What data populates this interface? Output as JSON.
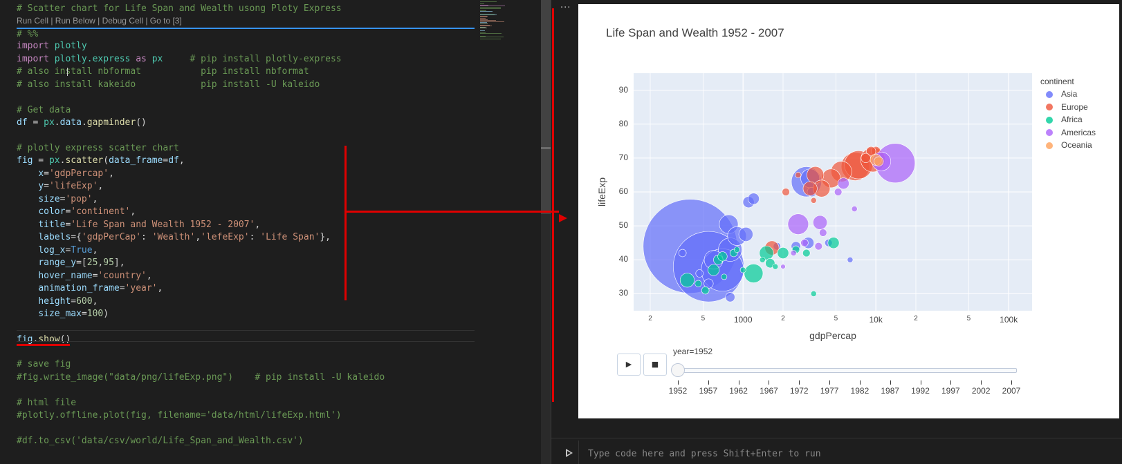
{
  "editor": {
    "codelens": "Run Cell | Run Below | Debug Cell | Go to [3]",
    "lines": [
      [
        [
          "c",
          "# Scatter chart for Life Span and Wealth usong Ploty Express"
        ]
      ],
      [],
      [
        [
          "c",
          "# %%"
        ]
      ],
      [
        [
          "k",
          "import "
        ],
        [
          "m",
          "plotly"
        ]
      ],
      [
        [
          "k",
          "import "
        ],
        [
          "m",
          "plotly.express"
        ],
        [
          "k",
          " as "
        ],
        [
          "m",
          "px"
        ],
        [
          "c",
          "     # pip install plotly-express"
        ]
      ],
      [
        [
          "c",
          "# also install nbformat           pip install nbformat"
        ]
      ],
      [
        [
          "c",
          "# also install kakeido            pip install -U kaleido"
        ]
      ],
      [],
      [
        [
          "c",
          "# Get data"
        ]
      ],
      [
        [
          "v",
          "df"
        ],
        [
          "p",
          " = "
        ],
        [
          "m",
          "px"
        ],
        [
          "p",
          "."
        ],
        [
          "v",
          "data"
        ],
        [
          "p",
          "."
        ],
        [
          "f",
          "gapminder"
        ],
        [
          "p",
          "()"
        ]
      ],
      [],
      [
        [
          "c",
          "# plotly express scatter chart"
        ]
      ],
      [
        [
          "v",
          "fig"
        ],
        [
          "p",
          " = "
        ],
        [
          "m",
          "px"
        ],
        [
          "p",
          "."
        ],
        [
          "f",
          "scatter"
        ],
        [
          "p",
          "("
        ],
        [
          "v",
          "data_frame"
        ],
        [
          "p",
          "="
        ],
        [
          "v",
          "df"
        ],
        [
          "p",
          ","
        ]
      ],
      [
        [
          "p",
          "    "
        ],
        [
          "v",
          "x"
        ],
        [
          "p",
          "="
        ],
        [
          "s",
          "'gdpPercap'"
        ],
        [
          "p",
          ","
        ]
      ],
      [
        [
          "p",
          "    "
        ],
        [
          "v",
          "y"
        ],
        [
          "p",
          "="
        ],
        [
          "s",
          "'lifeExp'"
        ],
        [
          "p",
          ","
        ]
      ],
      [
        [
          "p",
          "    "
        ],
        [
          "v",
          "size"
        ],
        [
          "p",
          "="
        ],
        [
          "s",
          "'pop'"
        ],
        [
          "p",
          ","
        ]
      ],
      [
        [
          "p",
          "    "
        ],
        [
          "v",
          "color"
        ],
        [
          "p",
          "="
        ],
        [
          "s",
          "'continent'"
        ],
        [
          "p",
          ","
        ]
      ],
      [
        [
          "p",
          "    "
        ],
        [
          "v",
          "title"
        ],
        [
          "p",
          "="
        ],
        [
          "s",
          "'Life Span and Wealth 1952 - 2007'"
        ],
        [
          "p",
          ","
        ]
      ],
      [
        [
          "p",
          "    "
        ],
        [
          "v",
          "labels"
        ],
        [
          "p",
          "={"
        ],
        [
          "s",
          "'gdpPerCap'"
        ],
        [
          "p",
          ": "
        ],
        [
          "s",
          "'Wealth'"
        ],
        [
          "p",
          ","
        ],
        [
          "s",
          "'lefeExp'"
        ],
        [
          "p",
          ": "
        ],
        [
          "s",
          "'Life Span'"
        ],
        [
          "p",
          "},"
        ]
      ],
      [
        [
          "p",
          "    "
        ],
        [
          "v",
          "log_x"
        ],
        [
          "p",
          "="
        ],
        [
          "b",
          "True"
        ],
        [
          "p",
          ","
        ]
      ],
      [
        [
          "p",
          "    "
        ],
        [
          "v",
          "range_y"
        ],
        [
          "p",
          "=["
        ],
        [
          "n",
          "25"
        ],
        [
          "p",
          ","
        ],
        [
          "n",
          "95"
        ],
        [
          "p",
          "],"
        ]
      ],
      [
        [
          "p",
          "    "
        ],
        [
          "v",
          "hover_name"
        ],
        [
          "p",
          "="
        ],
        [
          "s",
          "'country'"
        ],
        [
          "p",
          ","
        ]
      ],
      [
        [
          "p",
          "    "
        ],
        [
          "v",
          "animation_frame"
        ],
        [
          "p",
          "="
        ],
        [
          "s",
          "'year'"
        ],
        [
          "p",
          ","
        ]
      ],
      [
        [
          "p",
          "    "
        ],
        [
          "v",
          "height"
        ],
        [
          "p",
          "="
        ],
        [
          "n",
          "600"
        ],
        [
          "p",
          ","
        ]
      ],
      [
        [
          "p",
          "    "
        ],
        [
          "v",
          "size_max"
        ],
        [
          "p",
          "="
        ],
        [
          "n",
          "100"
        ],
        [
          "p",
          ")"
        ]
      ],
      [],
      [
        [
          "v",
          "fig"
        ],
        [
          "p",
          "."
        ],
        [
          "f",
          "show"
        ],
        [
          "p",
          "()"
        ]
      ],
      [],
      [
        [
          "c",
          "# save fig"
        ]
      ],
      [
        [
          "c",
          "#fig.write_image(\"data/png/lifeExp.png\")    # pip install -U kaleido"
        ]
      ],
      [],
      [
        [
          "c",
          "# html file"
        ]
      ],
      [
        [
          "c",
          "#plotly.offline.plot(fig, filename='data/html/lifeExp.html')"
        ]
      ],
      [],
      [
        [
          "c",
          "#df.to_csv('data/csv/world/Life_Span_and_Wealth.csv')"
        ]
      ]
    ]
  },
  "output": {
    "menu_icon": "ellipsis-icon",
    "console_placeholder": "Type code here and press Shift+Enter to run",
    "run_icon": "play-icon"
  },
  "plot": {
    "colors": {
      "Asia": "#636efa",
      "Europe": "#ef553b",
      "Africa": "#00cc96",
      "Americas": "#ab63fa",
      "Oceania": "#ffa15a"
    },
    "controls": {
      "play_icon": "play-icon",
      "stop_icon": "stop-icon"
    },
    "slider_label": "year=1952",
    "slider_steps": [
      "1952",
      "1957",
      "1962",
      "1967",
      "1972",
      "1977",
      "1982",
      "1987",
      "1992",
      "1997",
      "2002",
      "2007"
    ]
  },
  "chart_data": {
    "type": "scatter",
    "title": "Life Span and Wealth 1952 - 2007",
    "xlabel": "gdpPercap",
    "ylabel": "lifeExp",
    "x_scale": "log",
    "xlim": [
      150,
      150000
    ],
    "ylim": [
      25,
      95
    ],
    "x_ticks": [
      {
        "v": 200,
        "label": "2"
      },
      {
        "v": 500,
        "label": "5"
      },
      {
        "v": 1000,
        "label": "1000"
      },
      {
        "v": 2000,
        "label": "2"
      },
      {
        "v": 5000,
        "label": "5"
      },
      {
        "v": 10000,
        "label": "10k"
      },
      {
        "v": 20000,
        "label": "2"
      },
      {
        "v": 50000,
        "label": "5"
      },
      {
        "v": 100000,
        "label": "100k"
      }
    ],
    "y_ticks": [
      30,
      40,
      50,
      60,
      70,
      80,
      90
    ],
    "grid": true,
    "legend_title": "continent",
    "legend_position": "right",
    "series": [
      {
        "name": "Asia",
        "points": [
          {
            "x": 400,
            "y": 44,
            "s": 1.0
          },
          {
            "x": 550,
            "y": 38,
            "s": 0.75
          },
          {
            "x": 700,
            "y": 37,
            "s": 0.45
          },
          {
            "x": 600,
            "y": 40,
            "s": 0.2
          },
          {
            "x": 800,
            "y": 43,
            "s": 0.25
          },
          {
            "x": 780,
            "y": 50.5,
            "s": 0.2
          },
          {
            "x": 900,
            "y": 47,
            "s": 0.2
          },
          {
            "x": 1050,
            "y": 47.5,
            "s": 0.15
          },
          {
            "x": 1100,
            "y": 57,
            "s": 0.12
          },
          {
            "x": 1200,
            "y": 58,
            "s": 0.12
          },
          {
            "x": 3000,
            "y": 63,
            "s": 0.32
          },
          {
            "x": 3200,
            "y": 64,
            "s": 0.2
          },
          {
            "x": 3300,
            "y": 60,
            "s": 0.1
          },
          {
            "x": 3100,
            "y": 45,
            "s": 0.12
          },
          {
            "x": 1800,
            "y": 44,
            "s": 0.08
          },
          {
            "x": 2500,
            "y": 44,
            "s": 0.1
          },
          {
            "x": 800,
            "y": 29,
            "s": 0.1
          },
          {
            "x": 550,
            "y": 33,
            "s": 0.1
          },
          {
            "x": 4400,
            "y": 45,
            "s": 0.08
          },
          {
            "x": 6400,
            "y": 40,
            "s": 0.06
          },
          {
            "x": 470,
            "y": 36,
            "s": 0.08
          },
          {
            "x": 350,
            "y": 42,
            "s": 0.08
          }
        ]
      },
      {
        "name": "Europe",
        "points": [
          {
            "x": 7000,
            "y": 67.5,
            "s": 0.3
          },
          {
            "x": 7400,
            "y": 68,
            "s": 0.3
          },
          {
            "x": 9500,
            "y": 69.5,
            "s": 0.26
          },
          {
            "x": 5500,
            "y": 66,
            "s": 0.22
          },
          {
            "x": 4600,
            "y": 64,
            "s": 0.2
          },
          {
            "x": 3500,
            "y": 65,
            "s": 0.18
          },
          {
            "x": 3900,
            "y": 61,
            "s": 0.18
          },
          {
            "x": 3200,
            "y": 61,
            "s": 0.15
          },
          {
            "x": 2100,
            "y": 60,
            "s": 0.08
          },
          {
            "x": 10000,
            "y": 72,
            "s": 0.1
          },
          {
            "x": 9200,
            "y": 72,
            "s": 0.1
          },
          {
            "x": 8400,
            "y": 70,
            "s": 0.1
          },
          {
            "x": 1650,
            "y": 43.5,
            "s": 0.15
          },
          {
            "x": 2600,
            "y": 65,
            "s": 0.06
          },
          {
            "x": 3400,
            "y": 57.5,
            "s": 0.06
          }
        ]
      },
      {
        "name": "Africa",
        "points": [
          {
            "x": 380,
            "y": 34,
            "s": 0.15
          },
          {
            "x": 1200,
            "y": 36,
            "s": 0.2
          },
          {
            "x": 1500,
            "y": 42,
            "s": 0.15
          },
          {
            "x": 1600,
            "y": 39,
            "s": 0.1
          },
          {
            "x": 2000,
            "y": 42,
            "s": 0.12
          },
          {
            "x": 2500,
            "y": 43,
            "s": 0.08
          },
          {
            "x": 3000,
            "y": 42,
            "s": 0.08
          },
          {
            "x": 4800,
            "y": 45,
            "s": 0.12
          },
          {
            "x": 600,
            "y": 37,
            "s": 0.12
          },
          {
            "x": 650,
            "y": 40,
            "s": 0.1
          },
          {
            "x": 700,
            "y": 41,
            "s": 0.1
          },
          {
            "x": 850,
            "y": 42,
            "s": 0.08
          },
          {
            "x": 520,
            "y": 31,
            "s": 0.08
          },
          {
            "x": 900,
            "y": 43,
            "s": 0.06
          },
          {
            "x": 3400,
            "y": 30,
            "s": 0.06
          },
          {
            "x": 1400,
            "y": 40,
            "s": 0.06
          },
          {
            "x": 1000,
            "y": 37,
            "s": 0.06
          },
          {
            "x": 460,
            "y": 33,
            "s": 0.07
          },
          {
            "x": 720,
            "y": 35,
            "s": 0.06
          },
          {
            "x": 1750,
            "y": 38,
            "s": 0.06
          }
        ]
      },
      {
        "name": "Americas",
        "points": [
          {
            "x": 14000,
            "y": 68.5,
            "s": 0.42
          },
          {
            "x": 2600,
            "y": 50.5,
            "s": 0.22
          },
          {
            "x": 3800,
            "y": 51,
            "s": 0.15
          },
          {
            "x": 11000,
            "y": 69,
            "s": 0.2
          },
          {
            "x": 5700,
            "y": 62.5,
            "s": 0.12
          },
          {
            "x": 6900,
            "y": 55,
            "s": 0.06
          },
          {
            "x": 4000,
            "y": 48,
            "s": 0.08
          },
          {
            "x": 2900,
            "y": 45,
            "s": 0.08
          },
          {
            "x": 2400,
            "y": 42,
            "s": 0.06
          },
          {
            "x": 3700,
            "y": 44,
            "s": 0.08
          },
          {
            "x": 5200,
            "y": 60,
            "s": 0.08
          },
          {
            "x": 2000,
            "y": 38,
            "s": 0.05
          }
        ]
      },
      {
        "name": "Oceania",
        "points": [
          {
            "x": 10000,
            "y": 69.5,
            "s": 0.12
          },
          {
            "x": 10500,
            "y": 69,
            "s": 0.1
          }
        ]
      }
    ]
  }
}
